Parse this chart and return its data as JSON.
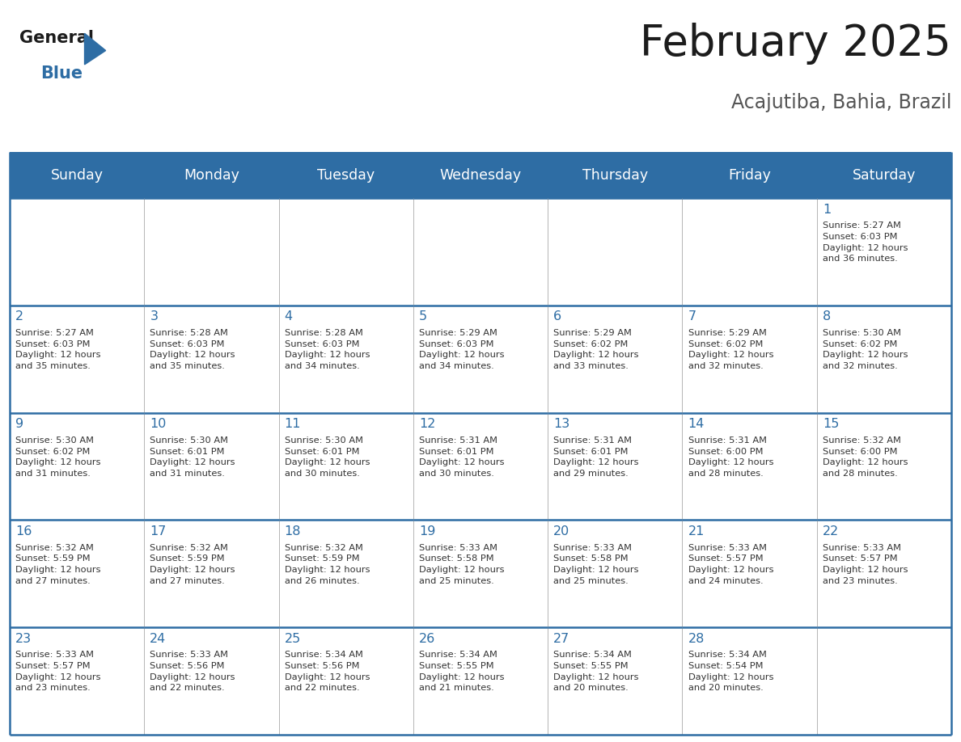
{
  "title": "February 2025",
  "subtitle": "Acajutiba, Bahia, Brazil",
  "header_bg": "#2E6DA4",
  "header_text": "#FFFFFF",
  "cell_bg": "#FFFFFF",
  "border_color": "#2E6DA4",
  "day_number_color": "#2E6DA4",
  "info_text_color": "#333333",
  "day_headers": [
    "Sunday",
    "Monday",
    "Tuesday",
    "Wednesday",
    "Thursday",
    "Friday",
    "Saturday"
  ],
  "calendar": [
    [
      {
        "day": "",
        "info": ""
      },
      {
        "day": "",
        "info": ""
      },
      {
        "day": "",
        "info": ""
      },
      {
        "day": "",
        "info": ""
      },
      {
        "day": "",
        "info": ""
      },
      {
        "day": "",
        "info": ""
      },
      {
        "day": "1",
        "info": "Sunrise: 5:27 AM\nSunset: 6:03 PM\nDaylight: 12 hours\nand 36 minutes."
      }
    ],
    [
      {
        "day": "2",
        "info": "Sunrise: 5:27 AM\nSunset: 6:03 PM\nDaylight: 12 hours\nand 35 minutes."
      },
      {
        "day": "3",
        "info": "Sunrise: 5:28 AM\nSunset: 6:03 PM\nDaylight: 12 hours\nand 35 minutes."
      },
      {
        "day": "4",
        "info": "Sunrise: 5:28 AM\nSunset: 6:03 PM\nDaylight: 12 hours\nand 34 minutes."
      },
      {
        "day": "5",
        "info": "Sunrise: 5:29 AM\nSunset: 6:03 PM\nDaylight: 12 hours\nand 34 minutes."
      },
      {
        "day": "6",
        "info": "Sunrise: 5:29 AM\nSunset: 6:02 PM\nDaylight: 12 hours\nand 33 minutes."
      },
      {
        "day": "7",
        "info": "Sunrise: 5:29 AM\nSunset: 6:02 PM\nDaylight: 12 hours\nand 32 minutes."
      },
      {
        "day": "8",
        "info": "Sunrise: 5:30 AM\nSunset: 6:02 PM\nDaylight: 12 hours\nand 32 minutes."
      }
    ],
    [
      {
        "day": "9",
        "info": "Sunrise: 5:30 AM\nSunset: 6:02 PM\nDaylight: 12 hours\nand 31 minutes."
      },
      {
        "day": "10",
        "info": "Sunrise: 5:30 AM\nSunset: 6:01 PM\nDaylight: 12 hours\nand 31 minutes."
      },
      {
        "day": "11",
        "info": "Sunrise: 5:30 AM\nSunset: 6:01 PM\nDaylight: 12 hours\nand 30 minutes."
      },
      {
        "day": "12",
        "info": "Sunrise: 5:31 AM\nSunset: 6:01 PM\nDaylight: 12 hours\nand 30 minutes."
      },
      {
        "day": "13",
        "info": "Sunrise: 5:31 AM\nSunset: 6:01 PM\nDaylight: 12 hours\nand 29 minutes."
      },
      {
        "day": "14",
        "info": "Sunrise: 5:31 AM\nSunset: 6:00 PM\nDaylight: 12 hours\nand 28 minutes."
      },
      {
        "day": "15",
        "info": "Sunrise: 5:32 AM\nSunset: 6:00 PM\nDaylight: 12 hours\nand 28 minutes."
      }
    ],
    [
      {
        "day": "16",
        "info": "Sunrise: 5:32 AM\nSunset: 5:59 PM\nDaylight: 12 hours\nand 27 minutes."
      },
      {
        "day": "17",
        "info": "Sunrise: 5:32 AM\nSunset: 5:59 PM\nDaylight: 12 hours\nand 27 minutes."
      },
      {
        "day": "18",
        "info": "Sunrise: 5:32 AM\nSunset: 5:59 PM\nDaylight: 12 hours\nand 26 minutes."
      },
      {
        "day": "19",
        "info": "Sunrise: 5:33 AM\nSunset: 5:58 PM\nDaylight: 12 hours\nand 25 minutes."
      },
      {
        "day": "20",
        "info": "Sunrise: 5:33 AM\nSunset: 5:58 PM\nDaylight: 12 hours\nand 25 minutes."
      },
      {
        "day": "21",
        "info": "Sunrise: 5:33 AM\nSunset: 5:57 PM\nDaylight: 12 hours\nand 24 minutes."
      },
      {
        "day": "22",
        "info": "Sunrise: 5:33 AM\nSunset: 5:57 PM\nDaylight: 12 hours\nand 23 minutes."
      }
    ],
    [
      {
        "day": "23",
        "info": "Sunrise: 5:33 AM\nSunset: 5:57 PM\nDaylight: 12 hours\nand 23 minutes."
      },
      {
        "day": "24",
        "info": "Sunrise: 5:33 AM\nSunset: 5:56 PM\nDaylight: 12 hours\nand 22 minutes."
      },
      {
        "day": "25",
        "info": "Sunrise: 5:34 AM\nSunset: 5:56 PM\nDaylight: 12 hours\nand 22 minutes."
      },
      {
        "day": "26",
        "info": "Sunrise: 5:34 AM\nSunset: 5:55 PM\nDaylight: 12 hours\nand 21 minutes."
      },
      {
        "day": "27",
        "info": "Sunrise: 5:34 AM\nSunset: 5:55 PM\nDaylight: 12 hours\nand 20 minutes."
      },
      {
        "day": "28",
        "info": "Sunrise: 5:34 AM\nSunset: 5:54 PM\nDaylight: 12 hours\nand 20 minutes."
      },
      {
        "day": "",
        "info": ""
      }
    ]
  ],
  "num_rows": 5,
  "num_cols": 7,
  "fig_width": 11.88,
  "fig_height": 9.18,
  "dpi": 100
}
